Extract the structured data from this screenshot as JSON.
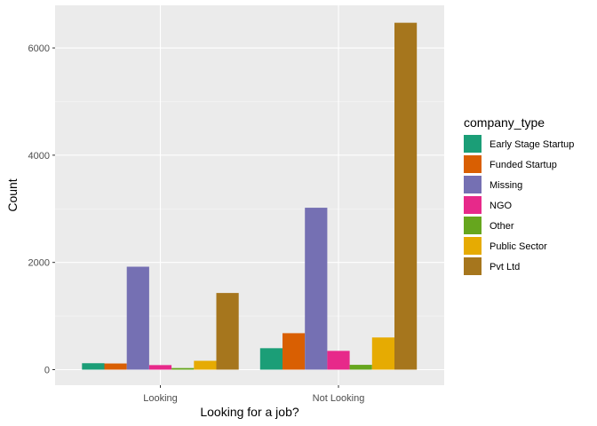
{
  "chart_data": {
    "type": "bar",
    "categories": [
      "Looking",
      "Not Looking"
    ],
    "series": [
      {
        "name": "Early Stage Startup",
        "color": "#1B9E77",
        "values": [
          120,
          400
        ]
      },
      {
        "name": "Funded Startup",
        "color": "#D95F02",
        "values": [
          115,
          680
        ]
      },
      {
        "name": "Missing",
        "color": "#7570B3",
        "values": [
          1920,
          3020
        ]
      },
      {
        "name": "NGO",
        "color": "#E7298A",
        "values": [
          85,
          350
        ]
      },
      {
        "name": "Other",
        "color": "#66A61E",
        "values": [
          30,
          90
        ]
      },
      {
        "name": "Public Sector",
        "color": "#E6AB02",
        "values": [
          165,
          600
        ]
      },
      {
        "name": "Pvt Ltd",
        "color": "#A6761D",
        "values": [
          1430,
          6470
        ]
      }
    ],
    "xlabel": "Looking for a job?",
    "ylabel": "Count",
    "ylim": [
      -300,
      6800
    ],
    "yticks": [
      0,
      2000,
      4000,
      6000
    ],
    "legend_title": "company_type",
    "legend_position": "right",
    "grid": true,
    "panel_background": "#EBEBEB"
  }
}
